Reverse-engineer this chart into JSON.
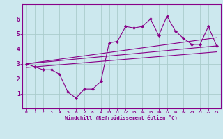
{
  "xlabel": "Windchill (Refroidissement éolien,°C)",
  "bg_color": "#cce8ee",
  "grid_color": "#aacccc",
  "line_color": "#880088",
  "xlim": [
    -0.5,
    23.5
  ],
  "ylim": [
    0,
    7
  ],
  "xticks": [
    0,
    1,
    2,
    3,
    4,
    5,
    6,
    7,
    8,
    9,
    10,
    11,
    12,
    13,
    14,
    15,
    16,
    17,
    18,
    19,
    20,
    21,
    22,
    23
  ],
  "yticks": [
    1,
    2,
    3,
    4,
    5,
    6
  ],
  "main_x": [
    0,
    1,
    2,
    3,
    4,
    5,
    6,
    7,
    8,
    9,
    10,
    11,
    12,
    13,
    14,
    15,
    16,
    17,
    18,
    19,
    20,
    21,
    22,
    23
  ],
  "main_y": [
    3.0,
    2.8,
    2.6,
    2.6,
    2.3,
    1.1,
    0.7,
    1.3,
    1.3,
    1.8,
    4.4,
    4.5,
    5.5,
    5.4,
    5.5,
    6.0,
    4.9,
    6.2,
    5.2,
    4.7,
    4.3,
    4.3,
    5.5,
    4.2
  ],
  "line1_x": [
    0,
    23
  ],
  "line1_y": [
    3.0,
    4.2
  ],
  "line2_x": [
    0,
    23
  ],
  "line2_y": [
    2.75,
    3.8
  ],
  "line3_x": [
    0,
    23
  ],
  "line3_y": [
    3.0,
    4.75
  ]
}
